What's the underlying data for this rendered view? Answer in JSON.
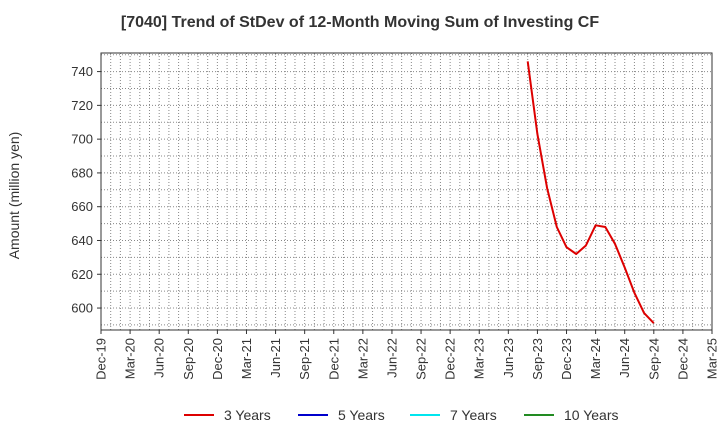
{
  "chart_data": {
    "type": "line",
    "title": "[7040]  Trend of StDev of 12-Month Moving Sum of Investing CF",
    "xlabel": "",
    "ylabel": "Amount (million yen)",
    "x_tick_labels": [
      "Dec-19",
      "Mar-20",
      "Jun-20",
      "Sep-20",
      "Dec-20",
      "Mar-21",
      "Jun-21",
      "Sep-21",
      "Dec-21",
      "Mar-22",
      "Jun-22",
      "Sep-22",
      "Dec-22",
      "Mar-23",
      "Jun-23",
      "Sep-23",
      "Dec-23",
      "Mar-24",
      "Jun-24",
      "Sep-24",
      "Dec-24",
      "Mar-25"
    ],
    "y_ticks": [
      600,
      620,
      640,
      660,
      680,
      700,
      720,
      740
    ],
    "ylim": [
      587,
      751
    ],
    "grid": true,
    "legend_position": "bottom",
    "series": [
      {
        "name": "3 Years",
        "color": "#dd0000",
        "x": [
          "2023-08",
          "2023-09",
          "2023-10",
          "2023-11",
          "2023-12",
          "2024-01",
          "2024-02",
          "2024-03",
          "2024-04",
          "2024-05",
          "2024-06",
          "2024-07",
          "2024-08",
          "2024-09"
        ],
        "values": [
          746,
          703,
          671,
          648,
          636,
          632,
          637,
          649,
          648,
          638,
          624,
          609,
          597,
          591
        ]
      },
      {
        "name": "5 Years",
        "color": "#0000cc",
        "x": [],
        "values": []
      },
      {
        "name": "7 Years",
        "color": "#00e5ee",
        "x": [],
        "values": []
      },
      {
        "name": "10 Years",
        "color": "#228b22",
        "x": [],
        "values": []
      }
    ]
  }
}
